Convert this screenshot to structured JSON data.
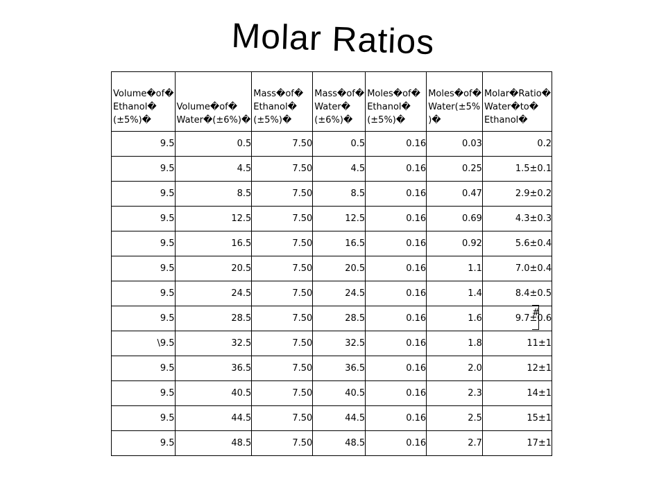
{
  "title": "Molar Ratios",
  "table": {
    "headers": [
      "Volume�of� Ethanol� (±5%)�",
      "Volume�of� Water�(±6%)�",
      "Mass�of� Ethanol� (±5%)�",
      "Mass�of� Water� (±6%)�",
      "Moles�of� Ethanol� (±5%)�",
      "Moles�of� Water(±5% )�",
      "Molar�Ratio� Water�to� Ethanol�"
    ],
    "rows": [
      [
        "9.5",
        "0.5",
        "7.50",
        "0.5",
        "0.16",
        "0.03",
        "0.2"
      ],
      [
        "9.5",
        "4.5",
        "7.50",
        "4.5",
        "0.16",
        "0.25",
        "1.5±0.1"
      ],
      [
        "9.5",
        "8.5",
        "7.50",
        "8.5",
        "0.16",
        "0.47",
        "2.9±0.2"
      ],
      [
        "9.5",
        "12.5",
        "7.50",
        "12.5",
        "0.16",
        "0.69",
        "4.3±0.3"
      ],
      [
        "9.5",
        "16.5",
        "7.50",
        "16.5",
        "0.16",
        "0.92",
        "5.6±0.4"
      ],
      [
        "9.5",
        "20.5",
        "7.50",
        "20.5",
        "0.16",
        "1.1",
        "7.0±0.4"
      ],
      [
        "9.5",
        "24.5",
        "7.50",
        "24.5",
        "0.16",
        "1.4",
        "8.4±0.5"
      ],
      [
        "9.5",
        "28.5",
        "7.50",
        "28.5",
        "0.16",
        "1.6",
        "9.7±0.6"
      ],
      [
        "\\9.5",
        "32.5",
        "7.50",
        "32.5",
        "0.16",
        "1.8",
        "11±1"
      ],
      [
        "9.5",
        "36.5",
        "7.50",
        "36.5",
        "0.16",
        "2.0",
        "12±1"
      ],
      [
        "9.5",
        "40.5",
        "7.50",
        "40.5",
        "0.16",
        "2.3",
        "14±1"
      ],
      [
        "9.5",
        "44.5",
        "7.50",
        "44.5",
        "0.16",
        "2.5",
        "15±1"
      ],
      [
        "9.5",
        "48.5",
        "7.50",
        "48.5",
        "0.16",
        "2.7",
        "17±1"
      ]
    ],
    "side_mark": "#"
  }
}
